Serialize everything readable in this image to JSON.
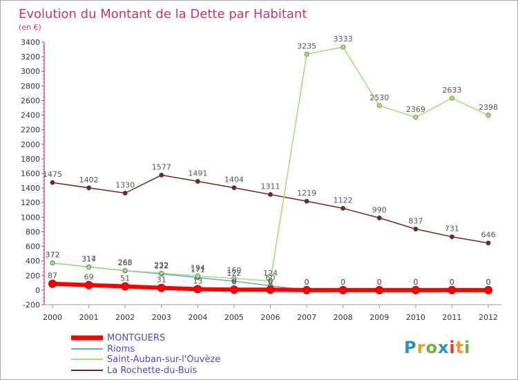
{
  "chart_data": {
    "type": "line",
    "title": "Evolution du Montant de la Dette par Habitant",
    "subtitle": "(en €)",
    "x": [
      "2000",
      "2001",
      "2002",
      "2003",
      "2004",
      "2005",
      "2006",
      "2007",
      "2008",
      "2009",
      "2010",
      "2011",
      "2012"
    ],
    "ylim": [
      -200,
      3400
    ],
    "yticks": [
      -200,
      0,
      200,
      400,
      600,
      800,
      1000,
      1200,
      1400,
      1600,
      1800,
      2000,
      2200,
      2400,
      2600,
      2800,
      3000,
      3200,
      3400
    ],
    "grid": false,
    "legend_position": "bottom-left",
    "series": [
      {
        "name": "MONTGUERS",
        "color": "#ff0000",
        "values": [
          87,
          69,
          51,
          31,
          13,
          6,
          6,
          0,
          0,
          0,
          0,
          0,
          0
        ],
        "labels": [
          "87",
          "69",
          "51",
          "31",
          "13",
          "6",
          "6",
          "0",
          "0",
          "0",
          "0",
          "0",
          "0"
        ]
      },
      {
        "name": "Rioms",
        "color": "#6ea0d8",
        "values": [
          372,
          317,
          265,
          222,
          171,
          122,
          60,
          0,
          0,
          0,
          0,
          0,
          0
        ],
        "labels": [
          "372",
          "317",
          "265",
          "222",
          "171",
          "122",
          "60",
          "0",
          "0",
          "0",
          "0",
          "0",
          "0"
        ]
      },
      {
        "name": "Saint-Auban-sur-l'Ouvèze",
        "color": "#99e273",
        "values": [
          372,
          314,
          268,
          232,
          194,
          160,
          124,
          3235,
          3333,
          2530,
          2369,
          2633,
          2398
        ],
        "labels": [
          "372",
          "314",
          "268",
          "232",
          "194",
          "160",
          "124",
          "3235",
          "3333",
          "2530",
          "2369",
          "2633",
          "2398"
        ]
      },
      {
        "name": "La Rochette-du-Buis",
        "color": "#7a2222",
        "values": [
          1475,
          1402,
          1330,
          1577,
          1491,
          1404,
          1311,
          1219,
          1122,
          990,
          837,
          731,
          646
        ],
        "labels": [
          "1475",
          "1402",
          "1330",
          "1577",
          "1491",
          "1404",
          "1311",
          "1219",
          "1122",
          "990",
          "837",
          "731",
          "646"
        ]
      }
    ]
  },
  "logo": {
    "letters": [
      "P",
      "r",
      "o",
      "x",
      "i",
      "t",
      "i"
    ],
    "colors": [
      "#2a8ec8",
      "#f39a1f",
      "#6ab33b",
      "#2a8ec8",
      "#e8352b",
      "#f39a1f",
      "#6ab33b"
    ]
  }
}
